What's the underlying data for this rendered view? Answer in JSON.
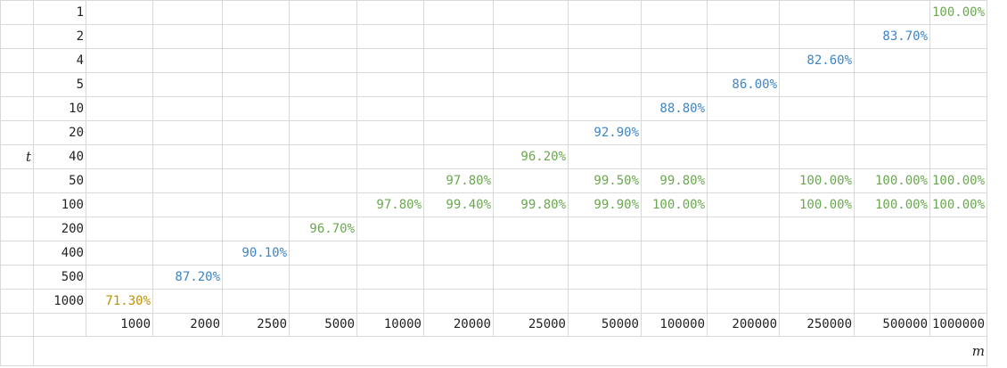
{
  "chart_data": {
    "type": "table",
    "row_axis_label": "t",
    "col_axis_label": "m",
    "rows": [
      1,
      2,
      4,
      5,
      10,
      20,
      40,
      50,
      100,
      200,
      400,
      500,
      1000
    ],
    "columns": [
      1000,
      2000,
      2500,
      5000,
      10000,
      20000,
      25000,
      50000,
      100000,
      200000,
      250000,
      500000,
      1000000
    ],
    "cells": [
      {
        "t": 1,
        "m": 1000000,
        "value": "100.00%",
        "color": "#6aa84f"
      },
      {
        "t": 2,
        "m": 500000,
        "value": "83.70%",
        "color": "#3d85c6"
      },
      {
        "t": 4,
        "m": 250000,
        "value": "82.60%",
        "color": "#3d85c6"
      },
      {
        "t": 5,
        "m": 200000,
        "value": "86.00%",
        "color": "#3d85c6"
      },
      {
        "t": 10,
        "m": 100000,
        "value": "88.80%",
        "color": "#3d85c6"
      },
      {
        "t": 20,
        "m": 50000,
        "value": "92.90%",
        "color": "#3d85c6"
      },
      {
        "t": 40,
        "m": 25000,
        "value": "96.20%",
        "color": "#6aa84f"
      },
      {
        "t": 50,
        "m": 20000,
        "value": "97.80%",
        "color": "#6aa84f"
      },
      {
        "t": 50,
        "m": 50000,
        "value": "99.50%",
        "color": "#6aa84f"
      },
      {
        "t": 50,
        "m": 100000,
        "value": "99.80%",
        "color": "#6aa84f"
      },
      {
        "t": 50,
        "m": 250000,
        "value": "100.00%",
        "color": "#6aa84f"
      },
      {
        "t": 50,
        "m": 500000,
        "value": "100.00%",
        "color": "#6aa84f"
      },
      {
        "t": 50,
        "m": 1000000,
        "value": "100.00%",
        "color": "#6aa84f"
      },
      {
        "t": 100,
        "m": 10000,
        "value": "97.80%",
        "color": "#6aa84f"
      },
      {
        "t": 100,
        "m": 20000,
        "value": "99.40%",
        "color": "#6aa84f"
      },
      {
        "t": 100,
        "m": 25000,
        "value": "99.80%",
        "color": "#6aa84f"
      },
      {
        "t": 100,
        "m": 50000,
        "value": "99.90%",
        "color": "#6aa84f"
      },
      {
        "t": 100,
        "m": 100000,
        "value": "100.00%",
        "color": "#6aa84f"
      },
      {
        "t": 100,
        "m": 250000,
        "value": "100.00%",
        "color": "#6aa84f"
      },
      {
        "t": 100,
        "m": 500000,
        "value": "100.00%",
        "color": "#6aa84f"
      },
      {
        "t": 100,
        "m": 1000000,
        "value": "100.00%",
        "color": "#6aa84f"
      },
      {
        "t": 200,
        "m": 5000,
        "value": "96.70%",
        "color": "#6aa84f"
      },
      {
        "t": 400,
        "m": 2500,
        "value": "90.10%",
        "color": "#3d85c6"
      },
      {
        "t": 500,
        "m": 2000,
        "value": "87.20%",
        "color": "#3d85c6"
      },
      {
        "t": 1000,
        "m": 1000,
        "value": "71.30%",
        "color": "#bf9000"
      }
    ]
  }
}
